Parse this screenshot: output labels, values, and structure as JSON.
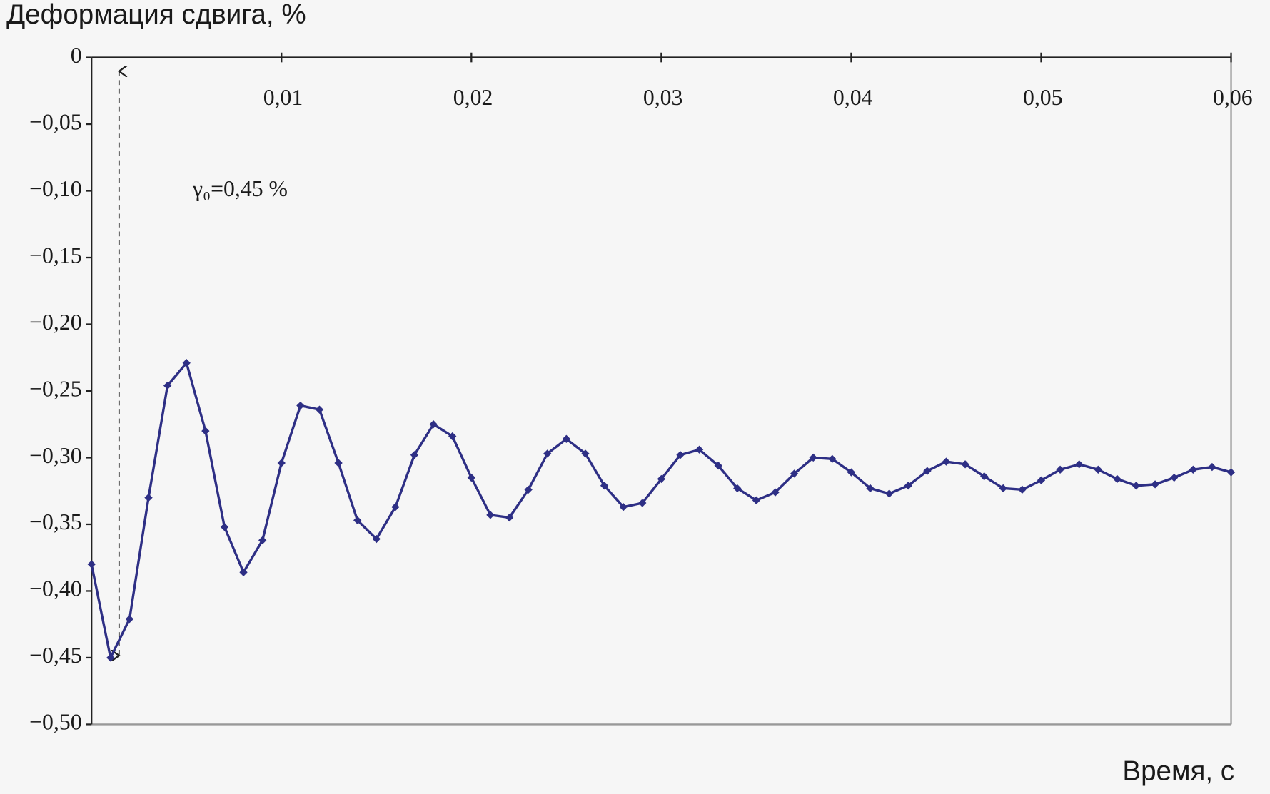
{
  "chart_data": {
    "type": "line",
    "title": "Деформация сдвига, %",
    "x_label": "Время, с",
    "annotation": "γ₀=0,45 %",
    "color": "#2e2f85",
    "xlim": [
      0,
      0.06
    ],
    "ylim": [
      -0.5,
      0
    ],
    "xticks": [
      {
        "value": 0.01,
        "label": "0,01"
      },
      {
        "value": 0.02,
        "label": "0,02"
      },
      {
        "value": 0.03,
        "label": "0,03"
      },
      {
        "value": 0.04,
        "label": "0,04"
      },
      {
        "value": 0.05,
        "label": "0,05"
      },
      {
        "value": 0.06,
        "label": "0,06"
      }
    ],
    "yticks": [
      0,
      {
        "value": -0.05,
        "label": "−0,05"
      },
      {
        "value": -0.1,
        "label": "−0,10"
      },
      {
        "value": -0.15,
        "label": "−0,15"
      },
      {
        "value": -0.2,
        "label": "−0,20"
      },
      {
        "value": -0.25,
        "label": "−0,25"
      },
      {
        "value": -0.3,
        "label": "−0,30"
      },
      {
        "value": -0.35,
        "label": "−0,35"
      },
      {
        "value": -0.4,
        "label": "−0,40"
      },
      {
        "value": -0.45,
        "label": "−0,45"
      },
      {
        "value": -0.5,
        "label": "−0,50"
      }
    ],
    "x": [
      0,
      0.001,
      0.002,
      0.003,
      0.004,
      0.005,
      0.006,
      0.007,
      0.008,
      0.009,
      0.01,
      0.011,
      0.012,
      0.013,
      0.014,
      0.015,
      0.016,
      0.017,
      0.018,
      0.019,
      0.02,
      0.021,
      0.022,
      0.023,
      0.024,
      0.025,
      0.026,
      0.027,
      0.028,
      0.029,
      0.03,
      0.031,
      0.032,
      0.033,
      0.034,
      0.035,
      0.036,
      0.037,
      0.038,
      0.039,
      0.04,
      0.041,
      0.042,
      0.043,
      0.044,
      0.045,
      0.046,
      0.047,
      0.048,
      0.049,
      0.05,
      0.051,
      0.052,
      0.053,
      0.054,
      0.055,
      0.056,
      0.057,
      0.058,
      0.059,
      0.06
    ],
    "values": [
      -0.38,
      -0.45,
      -0.421,
      -0.33,
      -0.246,
      -0.229,
      -0.28,
      -0.352,
      -0.386,
      -0.362,
      -0.304,
      -0.261,
      -0.264,
      -0.304,
      -0.347,
      -0.361,
      -0.337,
      -0.298,
      -0.275,
      -0.284,
      -0.315,
      -0.343,
      -0.345,
      -0.324,
      -0.297,
      -0.286,
      -0.297,
      -0.321,
      -0.337,
      -0.334,
      -0.316,
      -0.298,
      -0.294,
      -0.306,
      -0.323,
      -0.332,
      -0.326,
      -0.312,
      -0.3,
      -0.301,
      -0.311,
      -0.323,
      -0.327,
      -0.321,
      -0.31,
      -0.303,
      -0.305,
      -0.314,
      -0.323,
      -0.324,
      -0.317,
      -0.309,
      -0.305,
      -0.309,
      -0.316,
      -0.321,
      -0.32,
      -0.315,
      -0.309,
      -0.307,
      -0.311
    ]
  }
}
